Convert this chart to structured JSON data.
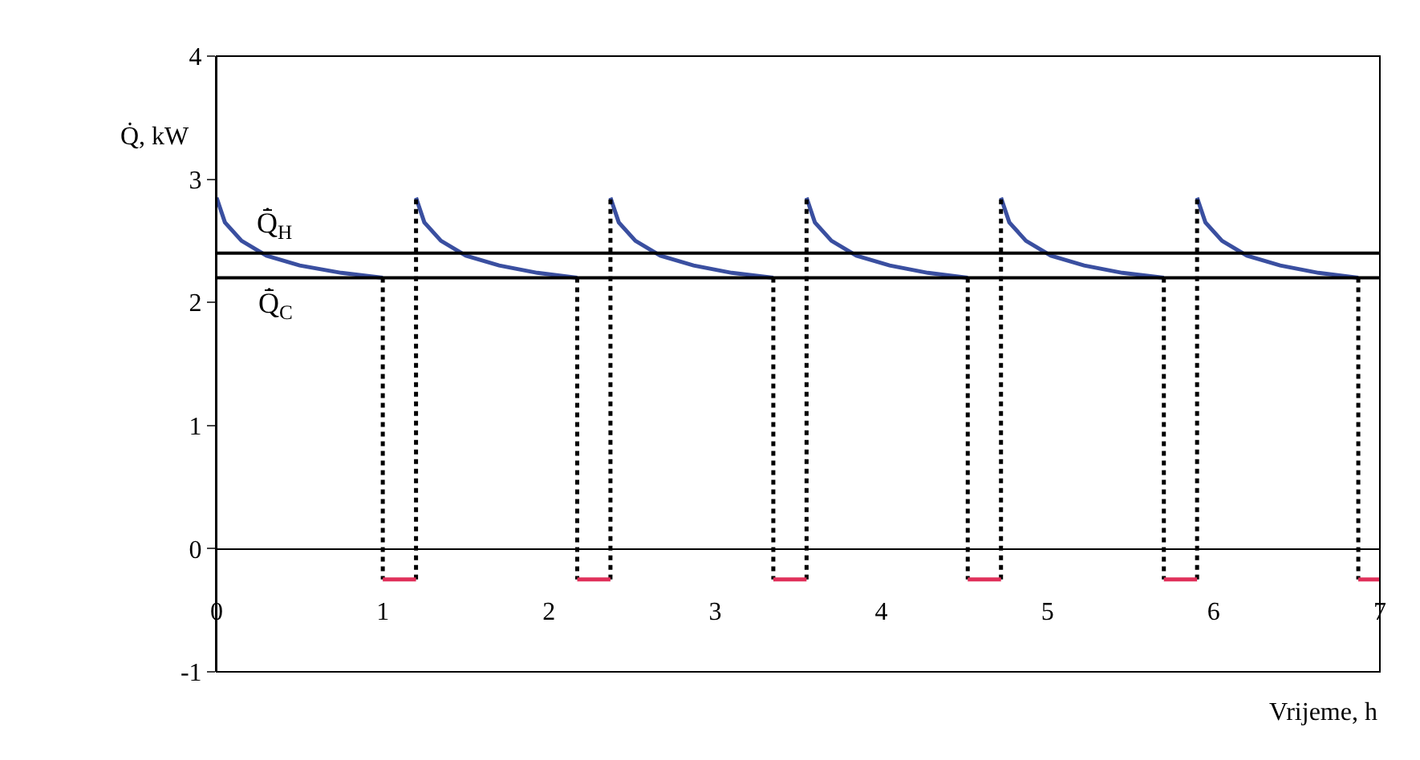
{
  "chart_data": {
    "type": "line",
    "xlabel": "Vrijeme, h",
    "ylabel": "Q̇, kW",
    "xlim": [
      0,
      7
    ],
    "xticks": [
      0,
      1,
      2,
      3,
      4,
      5,
      6,
      7
    ],
    "ylim": [
      -1,
      4
    ],
    "yticks": [
      -1,
      0,
      1,
      2,
      3,
      4
    ],
    "marker": "none",
    "series": [
      {
        "color": "#3a4fa0",
        "line_style": "solid",
        "x": [
          0,
          0.05,
          0.15,
          0.3,
          0.5,
          0.75,
          1.0,
          null,
          1.2,
          1.25,
          1.35,
          1.5,
          1.7,
          1.93,
          2.17,
          null,
          2.37,
          2.42,
          2.52,
          2.67,
          2.87,
          3.1,
          3.35,
          null,
          3.55,
          3.6,
          3.7,
          3.85,
          4.05,
          4.28,
          4.52,
          null,
          4.72,
          4.77,
          4.87,
          5.02,
          5.22,
          5.45,
          5.7,
          null,
          5.9,
          5.95,
          6.05,
          6.2,
          6.4,
          6.63,
          6.87
        ],
        "values": [
          2.85,
          2.65,
          2.5,
          2.38,
          2.3,
          2.24,
          2.2,
          null,
          2.85,
          2.65,
          2.5,
          2.38,
          2.3,
          2.24,
          2.2,
          null,
          2.85,
          2.65,
          2.5,
          2.38,
          2.3,
          2.24,
          2.2,
          null,
          2.85,
          2.65,
          2.5,
          2.38,
          2.3,
          2.24,
          2.2,
          null,
          2.85,
          2.65,
          2.5,
          2.38,
          2.3,
          2.24,
          2.2,
          null,
          2.85,
          2.65,
          2.5,
          2.38,
          2.3,
          2.24,
          2.2
        ]
      },
      {
        "color": "#000000",
        "line_style": "dotted",
        "x": [
          1.0,
          1.0,
          null,
          1.2,
          1.2,
          null,
          2.17,
          2.17,
          null,
          2.37,
          2.37,
          null,
          3.35,
          3.35,
          null,
          3.55,
          3.55,
          null,
          4.52,
          4.52,
          null,
          4.72,
          4.72,
          null,
          5.7,
          5.7,
          null,
          5.9,
          5.9,
          null,
          6.87,
          6.87
        ],
        "values": [
          2.2,
          -0.25,
          null,
          -0.25,
          2.85,
          null,
          2.2,
          -0.25,
          null,
          -0.25,
          2.85,
          null,
          2.2,
          -0.25,
          null,
          -0.25,
          2.85,
          null,
          2.2,
          -0.25,
          null,
          -0.25,
          2.85,
          null,
          2.2,
          -0.25,
          null,
          -0.25,
          2.85,
          null,
          2.2,
          -0.25
        ]
      },
      {
        "color": "#e0305a",
        "line_style": "solid",
        "x": [
          1.0,
          1.2,
          null,
          2.17,
          2.37,
          null,
          3.35,
          3.55,
          null,
          4.52,
          4.72,
          null,
          5.7,
          5.9,
          null,
          6.87,
          7.0
        ],
        "values": [
          -0.25,
          -0.25,
          null,
          -0.25,
          -0.25,
          null,
          -0.25,
          -0.25,
          null,
          -0.25,
          -0.25,
          null,
          -0.25,
          -0.25,
          null,
          -0.25,
          -0.25
        ]
      }
    ],
    "ref_lines": [
      {
        "axis": "y",
        "value": 2.4,
        "label": "Q̇̄$_{H}$",
        "color": "#000000",
        "line_style": "solid"
      },
      {
        "axis": "y",
        "value": 2.2,
        "label": "Q̇̄$_{C}$",
        "color": "#000000",
        "line_style": "solid"
      }
    ]
  }
}
